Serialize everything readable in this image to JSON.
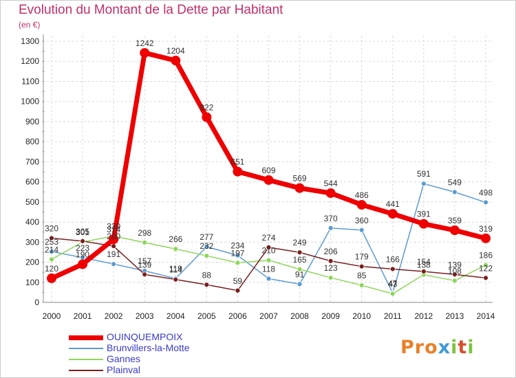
{
  "title": "Evolution du Montant de la Dette par Habitant",
  "unit": "(en €)",
  "logo": {
    "text": "Proxiti",
    "colors": [
      "#e8812a",
      "#e8812a",
      "#e8812a",
      "#3d9ad6",
      "#7cc440",
      "#d54f2c",
      "#7cc440"
    ]
  },
  "chart_data": {
    "type": "line",
    "title": "Evolution du Montant de la Dette par Habitant",
    "subtitle": "(en €)",
    "xlabel": "",
    "ylabel": "",
    "x": [
      "2000",
      "2001",
      "2002",
      "2003",
      "2004",
      "2005",
      "2006",
      "2007",
      "2008",
      "2009",
      "2010",
      "2011",
      "2012",
      "2013",
      "2014"
    ],
    "ylim": [
      0,
      1300
    ],
    "yticks": [
      0,
      100,
      200,
      300,
      400,
      500,
      600,
      700,
      800,
      900,
      1000,
      1100,
      1200,
      1300
    ],
    "grid": true,
    "legend": "bottom-left",
    "series": [
      {
        "name": "OUINQUEMPOIX",
        "color": "#ee0000",
        "values": [
          120,
          190,
          314,
          1242,
          1204,
          922,
          651,
          609,
          569,
          544,
          486,
          441,
          391,
          359,
          319
        ]
      },
      {
        "name": "Brunvillers-la-Motte",
        "color": "#5b9bd0",
        "values": [
          253,
          223,
          191,
          157,
          119,
          277,
          234,
          118,
          91,
          370,
          360,
          47,
          591,
          549,
          498
        ]
      },
      {
        "name": "Gannes",
        "color": "#8ed65a",
        "values": [
          214,
          301,
          330,
          298,
          266,
          232,
          197,
          210,
          165,
          123,
          85,
          43,
          138,
          108,
          186
        ]
      },
      {
        "name": "Plainval",
        "color": "#7a1e1e",
        "values": [
          320,
          305,
          280,
          139,
          114,
          88,
          59,
          274,
          249,
          206,
          179,
          166,
          154,
          139,
          122
        ]
      }
    ]
  }
}
